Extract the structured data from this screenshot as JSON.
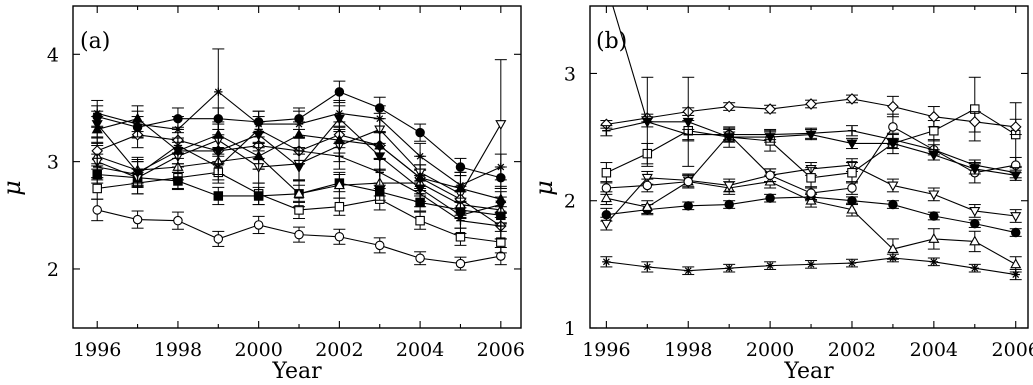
{
  "chart_data": [
    {
      "panel_label": "(a)",
      "type": "line",
      "xlabel": "Year",
      "ylabel": "μ",
      "xlim": [
        1995.4,
        2006.5
      ],
      "ylim": [
        1.45,
        4.45
      ],
      "xticks": [
        1996,
        1998,
        2000,
        2002,
        2004,
        2006
      ],
      "yticks": [
        2,
        3,
        4
      ],
      "x": [
        1996,
        1997,
        1998,
        1999,
        2000,
        2001,
        2002,
        2003,
        2004,
        2005,
        2006
      ],
      "series": [
        {
          "marker": "circle-open",
          "values": [
            2.55,
            2.46,
            2.45,
            2.28,
            2.41,
            2.32,
            2.3,
            2.22,
            2.1,
            2.05,
            2.12
          ],
          "errors": [
            0.1,
            0.08,
            0.08,
            0.07,
            0.08,
            0.07,
            0.07,
            0.07,
            0.06,
            0.06,
            0.08
          ]
        },
        {
          "marker": "square-open",
          "values": [
            2.75,
            2.8,
            2.85,
            2.9,
            2.7,
            2.55,
            2.58,
            2.65,
            2.45,
            2.3,
            2.25
          ],
          "errors": [
            0.1,
            0.1,
            0.1,
            0.1,
            0.1,
            0.08,
            0.08,
            0.1,
            0.08,
            0.08,
            0.1
          ]
        },
        {
          "marker": "square-filled",
          "values": [
            2.88,
            2.85,
            2.82,
            2.68,
            2.68,
            2.7,
            2.8,
            2.72,
            2.62,
            2.55,
            2.5
          ],
          "errors": [
            0.08,
            0.08,
            0.08,
            0.08,
            0.08,
            0.08,
            0.08,
            0.08,
            0.08,
            0.08,
            0.08
          ]
        },
        {
          "marker": "circle-filled",
          "values": [
            3.42,
            3.32,
            3.4,
            3.4,
            3.37,
            3.4,
            3.65,
            3.5,
            3.27,
            2.95,
            2.85
          ],
          "errors": [
            0.1,
            0.1,
            0.1,
            0.1,
            0.1,
            0.1,
            0.1,
            0.1,
            0.08,
            0.08,
            0.1
          ]
        },
        {
          "marker": "triangle-up-open",
          "values": [
            3.05,
            2.92,
            2.95,
            3.0,
            3.05,
            2.7,
            2.78,
            2.8,
            2.8,
            2.6,
            2.55
          ],
          "errors": [
            0.12,
            0.12,
            0.12,
            0.12,
            0.12,
            0.12,
            0.12,
            0.12,
            0.12,
            0.12,
            0.12
          ]
        },
        {
          "marker": "triangle-down-open",
          "values": [
            3.0,
            2.85,
            3.05,
            3.2,
            2.95,
            2.98,
            3.15,
            3.3,
            2.9,
            2.7,
            3.35
          ],
          "errors": [
            0.15,
            0.15,
            0.15,
            0.15,
            0.15,
            0.15,
            0.15,
            0.15,
            0.15,
            0.2,
            0.6
          ]
        },
        {
          "marker": "diamond-open",
          "values": [
            3.1,
            3.25,
            3.2,
            3.1,
            3.15,
            3.1,
            3.25,
            3.15,
            2.85,
            2.65,
            2.4
          ],
          "errors": [
            0.12,
            0.12,
            0.12,
            0.12,
            0.12,
            0.12,
            0.12,
            0.12,
            0.12,
            0.12,
            0.12
          ]
        },
        {
          "marker": "triangle-up-filled",
          "values": [
            3.3,
            3.4,
            3.1,
            3.25,
            3.05,
            3.25,
            3.2,
            3.15,
            2.85,
            2.75,
            2.65
          ],
          "errors": [
            0.12,
            0.12,
            0.12,
            0.12,
            0.12,
            0.12,
            0.12,
            0.12,
            0.12,
            0.12,
            0.12
          ]
        },
        {
          "marker": "triangle-down-filled",
          "values": [
            3.35,
            2.9,
            3.1,
            3.1,
            3.25,
            2.95,
            3.4,
            3.05,
            2.75,
            2.5,
            2.6
          ],
          "errors": [
            0.12,
            0.12,
            0.12,
            0.12,
            0.12,
            0.12,
            0.12,
            0.12,
            0.12,
            0.12,
            0.12
          ]
        },
        {
          "marker": "star",
          "values": [
            3.45,
            3.35,
            3.3,
            3.65,
            3.35,
            3.35,
            3.45,
            3.4,
            3.05,
            2.78,
            2.95
          ],
          "errors": [
            0.12,
            0.12,
            0.12,
            0.4,
            0.12,
            0.12,
            0.12,
            0.12,
            0.12,
            0.12,
            0.12
          ]
        },
        {
          "marker": "plus",
          "values": [
            2.95,
            2.88,
            3.15,
            2.95,
            3.3,
            3.1,
            3.05,
            2.9,
            2.7,
            2.45,
            2.4
          ],
          "errors": [
            0.12,
            0.12,
            0.12,
            0.12,
            0.12,
            0.12,
            0.12,
            0.12,
            0.12,
            0.12,
            0.12
          ]
        }
      ]
    },
    {
      "panel_label": "(b)",
      "type": "line",
      "xlabel": "Year",
      "ylabel": "μ",
      "xlim": [
        1995.6,
        2006.3
      ],
      "ylim": [
        1.0,
        3.53
      ],
      "xticks": [
        1996,
        1998,
        2000,
        2002,
        2004,
        2006
      ],
      "yticks": [
        1,
        2,
        3
      ],
      "x": [
        1996,
        1997,
        1998,
        1999,
        2000,
        2001,
        2002,
        2003,
        2004,
        2005,
        2006
      ],
      "series": [
        {
          "marker": "star",
          "values": [
            1.52,
            1.48,
            1.45,
            1.47,
            1.49,
            1.5,
            1.51,
            1.55,
            1.52,
            1.47,
            1.42
          ],
          "errors": [
            0.04,
            0.04,
            0.03,
            0.03,
            0.03,
            0.03,
            0.03,
            0.03,
            0.03,
            0.03,
            0.04
          ]
        },
        {
          "marker": "circle-filled",
          "values": [
            1.89,
            1.93,
            1.96,
            1.97,
            2.02,
            2.03,
            2.0,
            1.97,
            1.88,
            1.82,
            1.75
          ],
          "errors": [
            0.05,
            0.04,
            0.03,
            0.03,
            0.03,
            0.03,
            0.03,
            0.03,
            0.03,
            0.03,
            0.03
          ]
        },
        {
          "marker": "triangle-up-open",
          "values": [
            2.02,
            1.95,
            2.15,
            2.1,
            2.15,
            2.0,
            1.93,
            1.62,
            1.7,
            1.68,
            1.5
          ],
          "errors": [
            0.05,
            0.05,
            0.05,
            0.05,
            0.05,
            0.05,
            0.05,
            0.08,
            0.08,
            0.08,
            0.06
          ]
        },
        {
          "marker": "triangle-down-open",
          "values": [
            1.82,
            2.18,
            2.16,
            2.12,
            2.2,
            2.25,
            2.28,
            2.12,
            2.05,
            1.92,
            1.88
          ],
          "errors": [
            0.05,
            0.05,
            0.05,
            0.05,
            0.05,
            0.05,
            0.05,
            0.05,
            0.05,
            0.05,
            0.05
          ]
        },
        {
          "marker": "square-open",
          "values": [
            2.22,
            2.37,
            2.55,
            2.5,
            2.47,
            2.18,
            2.22,
            2.45,
            2.55,
            2.72,
            2.52
          ],
          "errors": [
            0.08,
            0.08,
            0.08,
            0.08,
            0.08,
            0.08,
            0.08,
            0.08,
            0.08,
            0.25,
            0.25
          ]
        },
        {
          "marker": "diamond-open",
          "values": [
            2.6,
            2.65,
            2.7,
            2.74,
            2.72,
            2.76,
            2.8,
            2.74,
            2.66,
            2.62,
            2.58
          ],
          "errors": [
            0.03,
            0.03,
            0.03,
            0.03,
            0.03,
            0.03,
            0.03,
            0.08,
            0.08,
            0.08,
            0.06
          ]
        },
        {
          "marker": "circle-open",
          "values": [
            2.1,
            2.12,
            2.15,
            2.52,
            2.2,
            2.06,
            2.1,
            2.58,
            2.4,
            2.22,
            2.28
          ],
          "errors": [
            0.05,
            0.05,
            0.05,
            0.05,
            0.05,
            0.05,
            0.05,
            0.1,
            0.08,
            0.08,
            0.06
          ]
        },
        {
          "marker": "plus",
          "values": [
            2.55,
            2.62,
            2.52,
            2.52,
            2.52,
            2.53,
            2.55,
            2.48,
            2.4,
            2.28,
            2.22
          ],
          "errors": [
            0.04,
            0.04,
            0.04,
            0.04,
            0.04,
            0.04,
            0.04,
            0.04,
            0.04,
            0.04,
            0.04
          ]
        },
        {
          "marker": "triangle-down-filled",
          "values": [
            3.7,
            2.62,
            2.62,
            2.5,
            2.5,
            2.52,
            2.45,
            2.45,
            2.36,
            2.25,
            2.2
          ],
          "errors": [
            0.04,
            0.35,
            0.35,
            0.04,
            0.04,
            0.04,
            0.04,
            0.04,
            0.04,
            0.04,
            0.04
          ]
        }
      ]
    }
  ]
}
